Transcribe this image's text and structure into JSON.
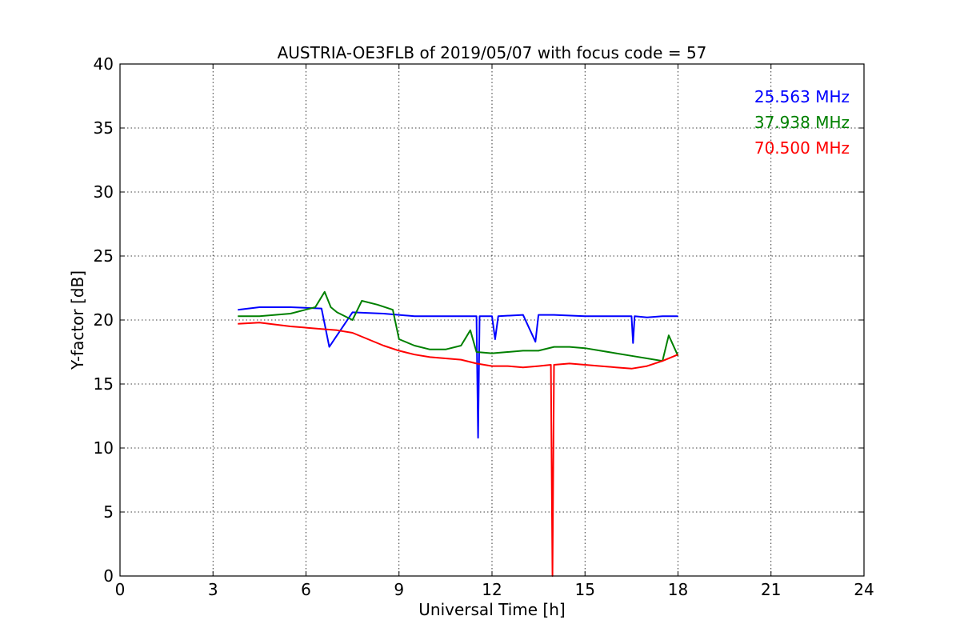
{
  "chart_data": {
    "type": "line",
    "title": "AUSTRIA-OE3FLB of 2019/05/07 with focus code = 57",
    "xlabel": "Universal Time [h]",
    "ylabel": "Y-factor [dB]",
    "xlim": [
      0,
      24
    ],
    "ylim": [
      0,
      40
    ],
    "xticks": [
      0,
      3,
      6,
      9,
      12,
      15,
      18,
      21,
      24
    ],
    "yticks": [
      0,
      5,
      10,
      15,
      20,
      25,
      30,
      35,
      40
    ],
    "grid": true,
    "legend_position": "top-right",
    "series": [
      {
        "name": "25.563 MHz",
        "color": "#0000ff",
        "x": [
          3.8,
          4.5,
          5.5,
          6.5,
          6.75,
          7.5,
          8.5,
          9.5,
          10.5,
          11.0,
          11.5,
          11.55,
          11.6,
          12.0,
          12.1,
          12.2,
          13.0,
          13.4,
          13.5,
          14.0,
          15.0,
          16.0,
          16.5,
          16.55,
          16.6,
          17.0,
          17.5,
          18.0
        ],
        "y": [
          20.8,
          21.0,
          21.0,
          20.9,
          17.9,
          20.6,
          20.5,
          20.3,
          20.3,
          20.3,
          20.3,
          10.8,
          20.3,
          20.3,
          18.5,
          20.3,
          20.4,
          18.3,
          20.4,
          20.4,
          20.3,
          20.3,
          20.3,
          18.2,
          20.3,
          20.2,
          20.3,
          20.3
        ]
      },
      {
        "name": "37.938 MHz",
        "color": "#008000",
        "x": [
          3.8,
          4.5,
          5.5,
          6.3,
          6.6,
          6.8,
          7.0,
          7.5,
          7.8,
          8.3,
          8.8,
          9.0,
          9.5,
          10.0,
          10.5,
          11.0,
          11.3,
          11.5,
          12.0,
          12.5,
          13.0,
          13.5,
          14.0,
          14.5,
          15.0,
          15.5,
          16.0,
          16.5,
          17.0,
          17.5,
          17.7,
          18.0
        ],
        "y": [
          20.3,
          20.3,
          20.5,
          21.0,
          22.2,
          21.0,
          20.6,
          20.0,
          21.5,
          21.2,
          20.8,
          18.5,
          18.0,
          17.7,
          17.7,
          18.0,
          19.2,
          17.5,
          17.4,
          17.5,
          17.6,
          17.6,
          17.9,
          17.9,
          17.8,
          17.6,
          17.4,
          17.2,
          17.0,
          16.8,
          18.8,
          17.2
        ]
      },
      {
        "name": "70.500 MHz",
        "color": "#ff0000",
        "x": [
          3.8,
          4.5,
          5.5,
          6.5,
          7.0,
          7.5,
          8.0,
          8.5,
          9.0,
          9.5,
          10.0,
          10.5,
          11.0,
          11.5,
          12.0,
          12.5,
          13.0,
          13.5,
          13.9,
          13.95,
          14.0,
          14.5,
          15.0,
          15.5,
          16.0,
          16.5,
          17.0,
          17.5,
          18.0
        ],
        "y": [
          19.7,
          19.8,
          19.5,
          19.3,
          19.2,
          19.0,
          18.5,
          18.0,
          17.6,
          17.3,
          17.1,
          17.0,
          16.9,
          16.6,
          16.4,
          16.4,
          16.3,
          16.4,
          16.5,
          0.0,
          16.5,
          16.6,
          16.5,
          16.4,
          16.3,
          16.2,
          16.4,
          16.8,
          17.3
        ]
      }
    ]
  }
}
